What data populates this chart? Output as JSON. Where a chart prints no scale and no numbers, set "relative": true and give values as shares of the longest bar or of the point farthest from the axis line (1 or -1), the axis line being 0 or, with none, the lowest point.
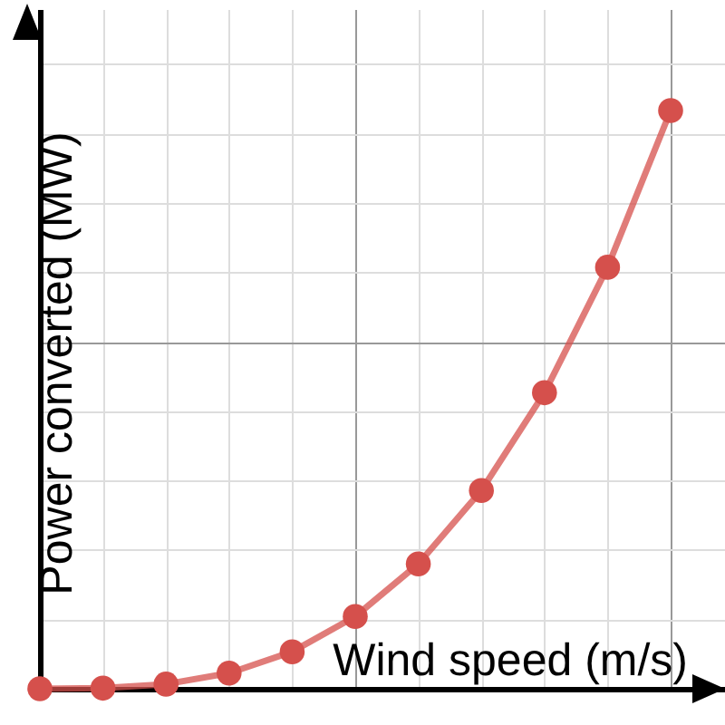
{
  "chart_data": {
    "type": "line",
    "xlabel": "Wind speed (m/s)",
    "ylabel": "Power converted (MW)",
    "relative": true,
    "grid": true,
    "tick_labels": false,
    "marker": "circle",
    "categories": [
      null,
      null,
      null,
      null,
      null,
      null,
      null,
      null,
      null,
      null,
      null
    ],
    "series": [
      {
        "color": "#d5504c",
        "values": [
          0,
          0.001,
          0.008,
          0.027,
          0.064,
          0.125,
          0.216,
          0.343,
          0.512,
          0.729,
          1
        ]
      }
    ]
  }
}
